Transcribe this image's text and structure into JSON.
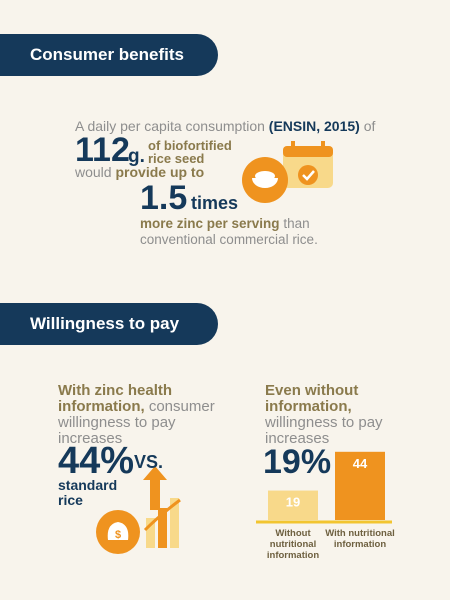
{
  "sections": [
    {
      "title": "Consumer benefits"
    },
    {
      "title": "Willingness to pay"
    }
  ],
  "benefits": {
    "intro": "A daily per capita consumption",
    "source": "(ENSIN, 2015)",
    "of": "of",
    "amount": "112",
    "unit": "g.",
    "seed": "of biofortified rice seed",
    "would": "would",
    "provide": "provide up to",
    "factor": "1.5",
    "times": "times",
    "more": "more zinc per serving",
    "than": "than conventional commercial rice."
  },
  "willingness": {
    "left": {
      "lead": "With zinc health information,",
      "rest": "consumer willingness to pay increases",
      "value": "44%",
      "vs": "VS.",
      "compare": "standard rice"
    },
    "right": {
      "lead": "Even without information,",
      "rest": "willingness to pay increases",
      "value": "19%",
      "chart": {
        "categories": [
          "Without nutritional information",
          "With nutritional information"
        ],
        "values": [
          19,
          44
        ],
        "colors": [
          "#f8d98a",
          "#ef931f"
        ]
      }
    }
  }
}
